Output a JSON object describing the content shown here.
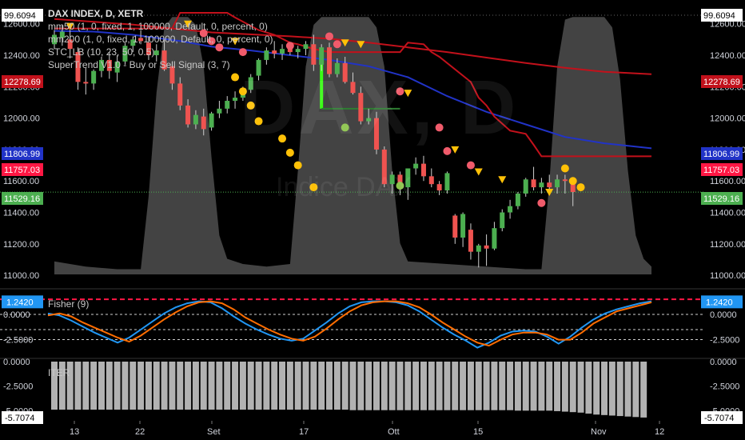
{
  "header": {
    "title": "DAX INDEX, D, XETR",
    "studies": [
      "mm50 (1, 0, fixed, 1, 100000, Default, 0, percent, 0)",
      "mm200 (1, 0, fixed, 1, 100000, Default, 0, percent, 0)",
      "STC_LB (10, 23, 50, 0.5)",
      "SuperTrend V1.0 - Buy or Sell Signal (3, 7)"
    ]
  },
  "watermark": {
    "symbol": "DAX, D",
    "name": "Indice DAX"
  },
  "colors": {
    "up": "#26a69a",
    "upBright": "#4caf50",
    "down": "#ef5350",
    "ma50": "#2133c7",
    "ma200": "#c2111b",
    "supertrend": "#c2111b",
    "stc": "#555555",
    "fisher1": "#2196f3",
    "fisher2": "#ff6d00"
  },
  "chart_data": [
    {
      "type": "line",
      "panel": "price",
      "ylim": [
        10960,
        12680
      ],
      "y_ticks": [
        11000,
        11200,
        11400,
        11600,
        11800,
        12000,
        12200,
        12400,
        12600
      ],
      "x_labels": [
        "13",
        "22",
        "Set",
        "17",
        "Ott",
        "15",
        "Nov",
        "12"
      ],
      "price_labels": [
        {
          "value": "99.6094",
          "color": "#000000",
          "bg": "#ffffff"
        },
        {
          "value": "12278.69",
          "color": "#ffffff",
          "bg": "#c2111b"
        },
        {
          "value": "11806.99",
          "color": "#ffffff",
          "bg": "#2133c7"
        },
        {
          "value": "11757.03",
          "color": "#ffffff",
          "bg": "#ff1744"
        },
        {
          "value": "11529.16",
          "color": "#ffffff",
          "bg": "#4caf50"
        }
      ],
      "candles": [
        [
          12470,
          12560,
          12440,
          12530
        ],
        [
          12510,
          12590,
          12460,
          12550
        ],
        [
          12500,
          12560,
          12380,
          12440
        ],
        [
          12420,
          12450,
          12180,
          12230
        ],
        [
          12230,
          12320,
          12150,
          12220
        ],
        [
          12220,
          12310,
          12180,
          12300
        ],
        [
          12300,
          12390,
          12260,
          12370
        ],
        [
          12370,
          12420,
          12250,
          12300
        ],
        [
          12290,
          12400,
          12230,
          12360
        ],
        [
          12360,
          12480,
          12340,
          12460
        ],
        [
          12460,
          12520,
          12420,
          12500
        ],
        [
          12510,
          12560,
          12470,
          12490
        ],
        [
          12480,
          12520,
          12370,
          12400
        ],
        [
          12400,
          12470,
          12360,
          12430
        ],
        [
          12430,
          12500,
          12300,
          12310
        ],
        [
          12330,
          12360,
          12180,
          12220
        ],
        [
          12220,
          12260,
          12050,
          12080
        ],
        [
          12080,
          12120,
          11940,
          11960
        ],
        [
          11960,
          12050,
          11930,
          12020
        ],
        [
          12010,
          12060,
          11890,
          11930
        ],
        [
          11940,
          12040,
          11920,
          12030
        ],
        [
          12030,
          12110,
          12000,
          12060
        ],
        [
          12060,
          12140,
          12030,
          12110
        ],
        [
          12110,
          12170,
          12060,
          12130
        ],
        [
          12130,
          12200,
          12110,
          12180
        ],
        [
          12180,
          12280,
          12160,
          12260
        ],
        [
          12270,
          12380,
          12240,
          12370
        ],
        [
          12370,
          12450,
          12340,
          12430
        ],
        [
          12430,
          12490,
          12380,
          12410
        ],
        [
          12410,
          12470,
          12370,
          12440
        ],
        [
          12440,
          12480,
          12400,
          12420
        ],
        [
          12420,
          12460,
          12380,
          12440
        ],
        [
          12440,
          12490,
          12400,
          12470
        ],
        [
          12470,
          12530,
          12300,
          12340
        ],
        [
          12340,
          12470,
          12300,
          12450
        ],
        [
          12450,
          12480,
          12260,
          12280
        ],
        [
          12280,
          12380,
          12260,
          12350
        ],
        [
          12350,
          12390,
          12220,
          12230
        ],
        [
          12230,
          12290,
          12150,
          12160
        ],
        [
          12160,
          12200,
          11960,
          11980
        ],
        [
          11980,
          12060,
          11960,
          12000
        ],
        [
          12000,
          12040,
          11770,
          11800
        ],
        [
          11800,
          11820,
          11560,
          11580
        ],
        [
          11580,
          11660,
          11520,
          11640
        ],
        [
          11640,
          11660,
          11510,
          11560
        ],
        [
          11560,
          11680,
          11480,
          11680
        ],
        [
          11680,
          11750,
          11640,
          11710
        ],
        [
          11710,
          11760,
          11600,
          11630
        ],
        [
          11630,
          11680,
          11560,
          11580
        ],
        [
          11580,
          11600,
          11510,
          11540
        ],
        [
          11540,
          11660,
          11520,
          11650
        ],
        [
          11380,
          11390,
          11200,
          11240
        ],
        [
          11240,
          11400,
          11180,
          11390
        ],
        [
          11290,
          11330,
          11100,
          11150
        ],
        [
          11150,
          11200,
          11050,
          11190
        ],
        [
          11190,
          11260,
          11060,
          11170
        ],
        [
          11170,
          11340,
          11160,
          11300
        ],
        [
          11300,
          11420,
          11280,
          11400
        ],
        [
          11400,
          11480,
          11360,
          11440
        ],
        [
          11440,
          11530,
          11420,
          11520
        ],
        [
          11520,
          11620,
          11500,
          11610
        ],
        [
          11610,
          11690,
          11540,
          11560
        ],
        [
          11560,
          11620,
          11520,
          11590
        ],
        [
          11590,
          11640,
          11540,
          11560
        ],
        [
          11560,
          11640,
          11520,
          11610
        ],
        [
          11610,
          11640,
          11520,
          11600
        ],
        [
          11600,
          11620,
          11440,
          11530
        ]
      ],
      "ma50": [
        [
          0,
          12555
        ],
        [
          5,
          12550
        ],
        [
          10,
          12530
        ],
        [
          16,
          12490
        ],
        [
          20,
          12455
        ],
        [
          25,
          12430
        ],
        [
          30,
          12400
        ],
        [
          35,
          12370
        ],
        [
          40,
          12330
        ],
        [
          45,
          12260
        ],
        [
          50,
          12140
        ],
        [
          55,
          12040
        ],
        [
          60,
          11960
        ],
        [
          65,
          11880
        ],
        [
          70,
          11840
        ],
        [
          76,
          11808
        ]
      ],
      "ma200": [
        [
          0,
          12630
        ],
        [
          10,
          12595
        ],
        [
          20,
          12545
        ],
        [
          30,
          12520
        ],
        [
          35,
          12505
        ],
        [
          40,
          12480
        ],
        [
          45,
          12450
        ],
        [
          50,
          12420
        ],
        [
          55,
          12385
        ],
        [
          60,
          12350
        ],
        [
          65,
          12320
        ],
        [
          70,
          12295
        ],
        [
          76,
          12279
        ]
      ],
      "supertrend": [
        [
          0,
          12570
        ],
        [
          15,
          12570
        ],
        [
          16,
          12670
        ],
        [
          22,
          12670
        ],
        [
          23,
          12640
        ],
        [
          26,
          12560
        ],
        [
          28,
          12530
        ],
        [
          30,
          12480
        ],
        [
          31,
          12470
        ],
        [
          33,
          12440
        ],
        [
          35,
          12420
        ],
        [
          44,
          12420
        ],
        [
          45,
          12480
        ],
        [
          47,
          12470
        ],
        [
          48,
          12420
        ],
        [
          49,
          12390
        ],
        [
          53,
          12230
        ],
        [
          54,
          12130
        ],
        [
          55,
          12080
        ],
        [
          56,
          12010
        ],
        [
          58,
          11920
        ],
        [
          60,
          11900
        ],
        [
          61,
          11830
        ],
        [
          62,
          11757
        ],
        [
          76,
          11757
        ]
      ],
      "supertrend_flag": {
        "x0": 34,
        "x1": 44,
        "ytop": 12410,
        "ybot": 12060
      },
      "stc": [
        [
          0,
          5
        ],
        [
          4,
          3
        ],
        [
          8,
          2
        ],
        [
          11,
          2
        ],
        [
          12,
          30
        ],
        [
          13,
          70
        ],
        [
          14,
          95
        ],
        [
          15,
          99
        ],
        [
          17,
          99
        ],
        [
          18,
          96
        ],
        [
          19,
          80
        ],
        [
          20,
          45
        ],
        [
          21,
          15
        ],
        [
          22,
          6
        ],
        [
          24,
          4
        ],
        [
          27,
          3
        ],
        [
          30,
          4
        ],
        [
          31,
          40
        ],
        [
          32,
          80
        ],
        [
          33,
          96
        ],
        [
          34,
          99
        ],
        [
          40,
          99
        ],
        [
          41,
          95
        ],
        [
          42,
          80
        ],
        [
          43,
          40
        ],
        [
          44,
          12
        ],
        [
          45,
          5
        ],
        [
          60,
          2
        ],
        [
          62,
          2
        ],
        [
          63,
          35
        ],
        [
          64,
          80
        ],
        [
          65,
          98
        ],
        [
          66,
          99
        ],
        [
          70,
          99
        ],
        [
          71,
          95
        ],
        [
          72,
          75
        ],
        [
          73,
          40
        ],
        [
          74,
          15
        ],
        [
          75,
          6
        ],
        [
          76,
          3
        ]
      ],
      "sell_markers": [
        {
          "x": 2,
          "y": 12585,
          "kind": "triangle"
        },
        {
          "x": 17,
          "y": 12600,
          "kind": "triangle"
        },
        {
          "x": 19,
          "y": 12540,
          "kind": "circle"
        },
        {
          "x": 20,
          "y": 12490,
          "kind": "circle"
        },
        {
          "x": 21,
          "y": 12450,
          "kind": "circle"
        },
        {
          "x": 23,
          "y": 12490,
          "kind": "triangle"
        },
        {
          "x": 24,
          "y": 12420,
          "kind": "circle"
        },
        {
          "x": 30,
          "y": 12460,
          "kind": "circle"
        },
        {
          "x": 35,
          "y": 12520,
          "kind": "circle"
        },
        {
          "x": 36,
          "y": 12470,
          "kind": "circle"
        },
        {
          "x": 37,
          "y": 12480,
          "kind": "triangle"
        },
        {
          "x": 39,
          "y": 12470,
          "kind": "triangle"
        },
        {
          "x": 44,
          "y": 12170,
          "kind": "circle"
        },
        {
          "x": 45,
          "y": 12160,
          "kind": "triangle"
        },
        {
          "x": 49,
          "y": 11940,
          "kind": "circle"
        },
        {
          "x": 50,
          "y": 11790,
          "kind": "circle"
        },
        {
          "x": 51,
          "y": 11800,
          "kind": "triangle"
        },
        {
          "x": 53,
          "y": 11700,
          "kind": "circle"
        },
        {
          "x": 54,
          "y": 11660,
          "kind": "triangle"
        },
        {
          "x": 57,
          "y": 11610,
          "kind": "triangle"
        },
        {
          "x": 62,
          "y": 11460,
          "kind": "circle"
        },
        {
          "x": 63,
          "y": 11530,
          "kind": "triangle"
        }
      ],
      "buy_markers": [
        {
          "x": 23,
          "y": 12260,
          "color": "#ffc107"
        },
        {
          "x": 24,
          "y": 12170,
          "color": "#ffc107"
        },
        {
          "x": 25,
          "y": 12080,
          "color": "#ffc107"
        },
        {
          "x": 26,
          "y": 11980,
          "color": "#ffc107"
        },
        {
          "x": 29,
          "y": 11870,
          "color": "#ffc107"
        },
        {
          "x": 30,
          "y": 11780,
          "color": "#ffc107"
        },
        {
          "x": 31,
          "y": 11700,
          "color": "#ffc107"
        },
        {
          "x": 33,
          "y": 11560,
          "color": "#ffc107"
        },
        {
          "x": 37,
          "y": 11940,
          "color": "#8bc34a"
        },
        {
          "x": 44,
          "y": 11570,
          "color": "#8bc34a"
        },
        {
          "x": 65,
          "y": 11680,
          "color": "#ffc107"
        },
        {
          "x": 66,
          "y": 11600,
          "color": "#ffc107"
        },
        {
          "x": 67,
          "y": 11560,
          "color": "#ffc107"
        }
      ]
    },
    {
      "type": "line",
      "panel": "fisher",
      "title": "Fisher (9)",
      "ylim": [
        -4.2,
        2.3
      ],
      "y_ticks_labels": [
        "0.0000",
        "-2.5000"
      ],
      "y_ticks": [
        0,
        -2.5
      ],
      "current_value": "1.2420",
      "series": [
        {
          "name": "Fisher",
          "values": [
            0.1,
            -0.1,
            -0.6,
            -1.2,
            -1.8,
            -2.3,
            -2.8,
            -2.3,
            -1.5,
            -0.7,
            0.1,
            0.7,
            1.1,
            1.3,
            1.2,
            0.6,
            -0.2,
            -0.9,
            -1.5,
            -2.0,
            -2.4,
            -2.6,
            -2.4,
            -1.6,
            -0.8,
            0.1,
            0.8,
            1.2,
            1.3,
            1.3,
            1.2,
            0.9,
            0.3,
            -0.5,
            -1.3,
            -2.0,
            -2.6,
            -3.3,
            -2.8,
            -2.1,
            -1.7,
            -1.6,
            -1.7,
            -2.2,
            -2.9,
            -2.2,
            -1.3,
            -0.5,
            0.1,
            0.5,
            0.8,
            1.1,
            1.3
          ]
        },
        {
          "name": "Trigger",
          "values": [
            -0.1,
            0.1,
            -0.2,
            -0.8,
            -1.3,
            -1.8,
            -2.3,
            -2.7,
            -2.1,
            -1.3,
            -0.5,
            0.2,
            0.8,
            1.2,
            1.3,
            1.1,
            0.5,
            -0.3,
            -0.9,
            -1.5,
            -2.0,
            -2.4,
            -2.6,
            -2.2,
            -1.4,
            -0.5,
            0.3,
            0.9,
            1.2,
            1.3,
            1.3,
            1.1,
            0.7,
            0.0,
            -0.8,
            -1.5,
            -2.2,
            -2.8,
            -3.1,
            -2.5,
            -2.0,
            -1.8,
            -1.8,
            -2.0,
            -2.5,
            -2.5,
            -1.8,
            -0.9,
            -0.3,
            0.3,
            0.6,
            0.9,
            1.2
          ]
        }
      ]
    },
    {
      "type": "bar",
      "panel": "iter",
      "title": "ITER",
      "ylim": [
        -5.7074,
        0
      ],
      "y_ticks_labels": [
        "0.0000",
        "-2.5000",
        "-5.0000"
      ],
      "y_ticks": [
        0,
        -2.5,
        -5.0
      ],
      "current_value": "-5.7074",
      "values": [
        -4.9,
        -4.9,
        -4.9,
        -4.9,
        -4.9,
        -4.9,
        -4.9,
        -4.9,
        -4.9,
        -4.9,
        -4.9,
        -4.9,
        -4.9,
        -4.9,
        -4.9,
        -4.9,
        -4.9,
        -4.9,
        -4.9,
        -4.9,
        -4.9,
        -4.9,
        -4.9,
        -4.9,
        -4.9,
        -4.9,
        -4.9,
        -4.9,
        -4.9,
        -4.9,
        -4.9,
        -4.9,
        -4.9,
        -4.9,
        -4.9,
        -4.9,
        -4.9,
        -4.9,
        -4.95,
        -4.95,
        -4.95,
        -4.95,
        -4.95,
        -4.95,
        -4.95,
        -4.95,
        -4.95,
        -4.95,
        -4.95,
        -4.95,
        -4.95,
        -4.95,
        -4.95,
        -4.95,
        -4.95,
        -4.95,
        -4.95,
        -4.95,
        -4.95,
        -5.0,
        -5.0,
        -5.0,
        -5.0,
        -5.0,
        -5.05,
        -5.1,
        -5.15,
        -5.2,
        -5.3,
        -5.4,
        -5.45,
        -5.5,
        -5.55,
        -5.6,
        -5.65,
        -5.7
      ]
    }
  ]
}
